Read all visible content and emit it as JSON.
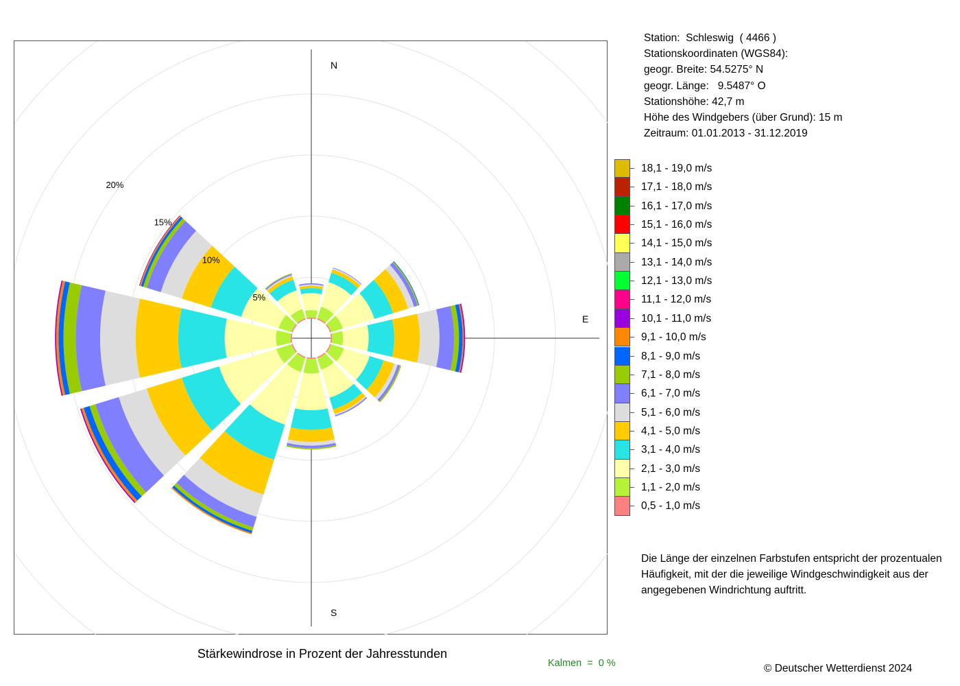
{
  "station_info": {
    "line1": "Station:  Schleswig  ( 4466 )",
    "line2": "Stationskoordinaten (WGS84):",
    "line3": "geogr. Breite: 54.5275° N",
    "line4": "geogr. Länge:   9.5487° O",
    "line5": "Stationshöhe: 42,7 m",
    "line6": "Höhe des Windgebers (über Grund): 15 m",
    "line7": "Zeitraum: 01.01.2013 - 31.12.2019"
  },
  "note": {
    "line1": "Die Länge der einzelnen Farbstufen entspricht der prozentualen",
    "line2": "Häufigkeit, mit der die jeweilige Windgeschwindigkeit aus der",
    "line3": "angegebenen Windrichtung auftritt."
  },
  "caption": "Stärkewindrose in Prozent der Jahresstunden",
  "copyright": "© Deutscher Wetterdienst  2024",
  "calm_label": "Kalmen  =  0 %",
  "chart_data": {
    "type": "polar-stacked-bar",
    "title": "Stärkewindrose in Prozent der Jahresstunden",
    "directions_deg": [
      0,
      30,
      60,
      90,
      120,
      150,
      180,
      210,
      240,
      270,
      300,
      330
    ],
    "compass_labels": {
      "N": "N",
      "E": "E",
      "S": "S"
    },
    "radial_max": 21.5,
    "inner_hole": 1.6,
    "rings": [
      5,
      10,
      15,
      20
    ],
    "ring_labels": [
      "5%",
      "10%",
      "15%",
      "20%"
    ],
    "grid": true,
    "legend_position": "right",
    "classes": [
      {
        "label": "0,5 - 1,0 m/s",
        "color": "#ff8080"
      },
      {
        "label": "1,1 - 2,0 m/s",
        "color": "#b7f23b"
      },
      {
        "label": "2,1 - 3,0 m/s",
        "color": "#ffffaa"
      },
      {
        "label": "3,1 - 4,0 m/s",
        "color": "#28e4e4"
      },
      {
        "label": "4,1 - 5,0 m/s",
        "color": "#ffcc00"
      },
      {
        "label": "5,1 - 6,0 m/s",
        "color": "#dddddd"
      },
      {
        "label": "6,1 - 7,0 m/s",
        "color": "#8080ff"
      },
      {
        "label": "7,1 - 8,0 m/s",
        "color": "#99cc00"
      },
      {
        "label": "8,1 - 9,0 m/s",
        "color": "#0066ff"
      },
      {
        "label": "9,1 - 10,0 m/s",
        "color": "#ff8800"
      },
      {
        "label": "10,1 - 11,0 m/s",
        "color": "#9900dd"
      },
      {
        "label": "11,1 - 12,0 m/s",
        "color": "#ff0088"
      },
      {
        "label": "12,1 - 13,0 m/s",
        "color": "#00ff33"
      },
      {
        "label": "13,1 - 14,0 m/s",
        "color": "#aaaaaa"
      },
      {
        "label": "14,1 - 15,0 m/s",
        "color": "#ffff55"
      },
      {
        "label": "15,1 - 16,0 m/s",
        "color": "#ff0000"
      },
      {
        "label": "16,1 - 17,0 m/s",
        "color": "#008000"
      },
      {
        "label": "17,1 - 18,0 m/s",
        "color": "#bb2200"
      },
      {
        "label": "18,1 - 19,0 m/s",
        "color": "#ddbb00"
      }
    ],
    "series": [
      {
        "direction": 0,
        "values": [
          0.1,
          0.6,
          1.4,
          0.4,
          0.2,
          0.1,
          0.1
        ]
      },
      {
        "direction": 30,
        "values": [
          0.1,
          1.0,
          2.1,
          0.8,
          0.3,
          0.1,
          0.05
        ]
      },
      {
        "direction": 60,
        "values": [
          0.1,
          1.0,
          2.7,
          1.6,
          1.3,
          0.5,
          0.3,
          0.1,
          0.05
        ]
      },
      {
        "direction": 90,
        "values": [
          0.1,
          0.9,
          2.1,
          2.1,
          2.1,
          1.6,
          1.2,
          0.4,
          0.3,
          0.1,
          0.1
        ]
      },
      {
        "direction": 120,
        "values": [
          0.1,
          1.1,
          2.2,
          1.2,
          0.9,
          0.3,
          0.2,
          0.1
        ]
      },
      {
        "direction": 150,
        "values": [
          0.1,
          1.0,
          2.4,
          1.0,
          0.4,
          0.1,
          0.1
        ]
      },
      {
        "direction": 180,
        "values": [
          0.1,
          1.2,
          3.0,
          1.6,
          1.0,
          0.3,
          0.2,
          0.1
        ]
      },
      {
        "direction": 210,
        "values": [
          0.1,
          1.2,
          4.5,
          3.0,
          3.0,
          1.9,
          0.9,
          0.3,
          0.2,
          0.1
        ]
      },
      {
        "direction": 240,
        "values": [
          0.1,
          1.3,
          4.9,
          3.2,
          3.0,
          2.4,
          2.0,
          0.5,
          0.5,
          0.2,
          0.1
        ]
      },
      {
        "direction": 270,
        "values": [
          0.1,
          1.2,
          4.2,
          3.8,
          3.5,
          2.9,
          2.0,
          1.0,
          0.4,
          0.2,
          0.1
        ]
      },
      {
        "direction": 300,
        "values": [
          0.1,
          1.1,
          3.2,
          2.6,
          2.5,
          1.8,
          1.2,
          0.3,
          0.2,
          0.1,
          0.05
        ]
      },
      {
        "direction": 330,
        "values": [
          0.1,
          0.8,
          1.6,
          0.9,
          0.3,
          0.1,
          0.1,
          0.05
        ]
      }
    ]
  }
}
